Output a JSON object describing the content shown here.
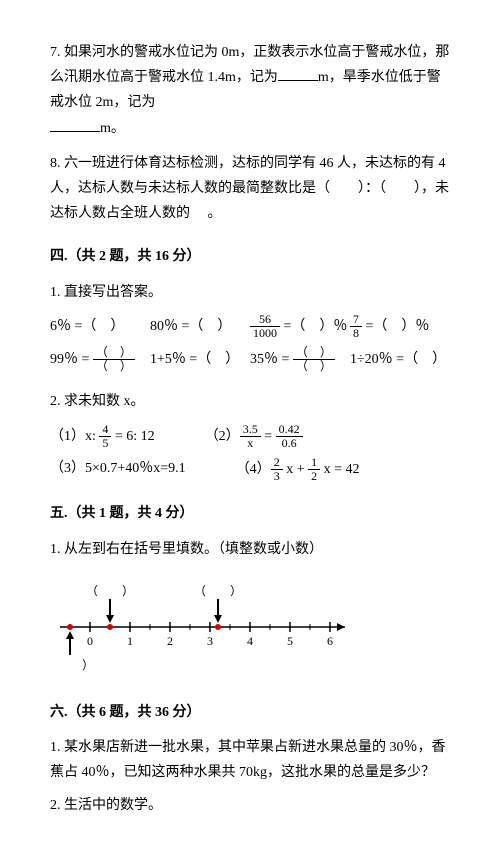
{
  "q7": {
    "text_a": "7. 如果河水的警戒水位记为 0m，正数表示水位高于警戒水位，那么汛期水位高于警戒水位 1.4m，记为",
    "text_b": "m，旱季水位低于警戒水位 2m，记为",
    "text_c": "m。"
  },
  "q8": {
    "text_a": "8. 六一班进行体育达标检测，达标的同学有 46 人，未达标的有 4 人，达标人数与未达标人数的最简整数比是（　　）：（　　），未达标人数占全班人数的 　。"
  },
  "sec4": {
    "title": "四.（共 2 题，共 16 分）",
    "q1": "1. 直接写出答案。",
    "r1c1_a": "6％ =（　）",
    "r1c2_a": "80％ =（　）",
    "r1c3_num": "56",
    "r1c3_den": "1000",
    "r1c3_b": " =（　）％",
    "r1c4_num": "7",
    "r1c4_den": "8",
    "r1c4_b": " =（　）％",
    "r2c1_a": "99％ = ",
    "r2c1_num": "（　）",
    "r2c1_den": "（　）",
    "r2c2_a": "1+5％ =（　）",
    "r2c3_a": "35％ = ",
    "r2c3_num": "（　）",
    "r2c3_den": "（　）",
    "r2c4_a": "1÷20％ =（　）",
    "q2": "2. 求未知数 x。",
    "e1_label": "（1）x: ",
    "e1_num": "4",
    "e1_den": "5",
    "e1_b": " = 6: 12",
    "e2_label": "（2）",
    "e2_num1": "3.5",
    "e2_den1": "x",
    "e2_eq": " = ",
    "e2_num2": "0.42",
    "e2_den2": "0.6",
    "e3": "（3）5×0.7+40％x=9.1",
    "e4_label": "（4）",
    "e4_n1": "2",
    "e4_d1": "3",
    "e4_mid": " x + ",
    "e4_n2": "1",
    "e4_d2": "2",
    "e4_tail": " x = 42"
  },
  "sec5": {
    "title": "五.（共 1 题，共 4 分）",
    "q1": "1. 从左到右在括号里填数。（填整数或小数）",
    "ticks": [
      "0",
      "1",
      "2",
      "3",
      "4",
      "5",
      "6"
    ],
    "top_blanks": [
      "（　　）",
      "（　　）"
    ],
    "bot_blanks": [
      "（　　）",
      "（　　）"
    ],
    "line_color": "#000000",
    "dot_color": "#cc0000"
  },
  "sec6": {
    "title": "六.（共 6 题，共 36 分）",
    "q1": "1. 某水果店新进一批水果，其中苹果占新进水果总量的 30％，香蕉占 40％，已知这两种水果共 70kg，这批水果的总量是多少？",
    "q2": "2. 生活中的数学。"
  }
}
